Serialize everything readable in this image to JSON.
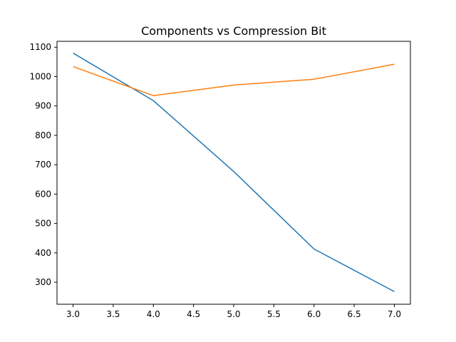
{
  "chart_data": {
    "type": "line",
    "title": "Components vs Compression Bit",
    "xlabel": "",
    "ylabel": "",
    "x": [
      3,
      4,
      5,
      6,
      7
    ],
    "xlim": [
      2.8,
      7.2
    ],
    "ylim": [
      225,
      1120
    ],
    "xticks": [
      3.0,
      3.5,
      4.0,
      4.5,
      5.0,
      5.5,
      6.0,
      6.5,
      7.0
    ],
    "xtick_labels": [
      "3.0",
      "3.5",
      "4.0",
      "4.5",
      "5.0",
      "5.5",
      "6.0",
      "6.5",
      "7.0"
    ],
    "yticks": [
      300,
      400,
      500,
      600,
      700,
      800,
      900,
      1000,
      1100
    ],
    "ytick_labels": [
      "300",
      "400",
      "500",
      "600",
      "700",
      "800",
      "900",
      "1000",
      "1100"
    ],
    "grid": false,
    "legend": "none",
    "series": [
      {
        "color": "#1f77b4",
        "values": [
          1080,
          918,
          677,
          413,
          268
        ]
      },
      {
        "color": "#ff7f0e",
        "values": [
          1034,
          935,
          971,
          991,
          1042
        ]
      }
    ]
  }
}
